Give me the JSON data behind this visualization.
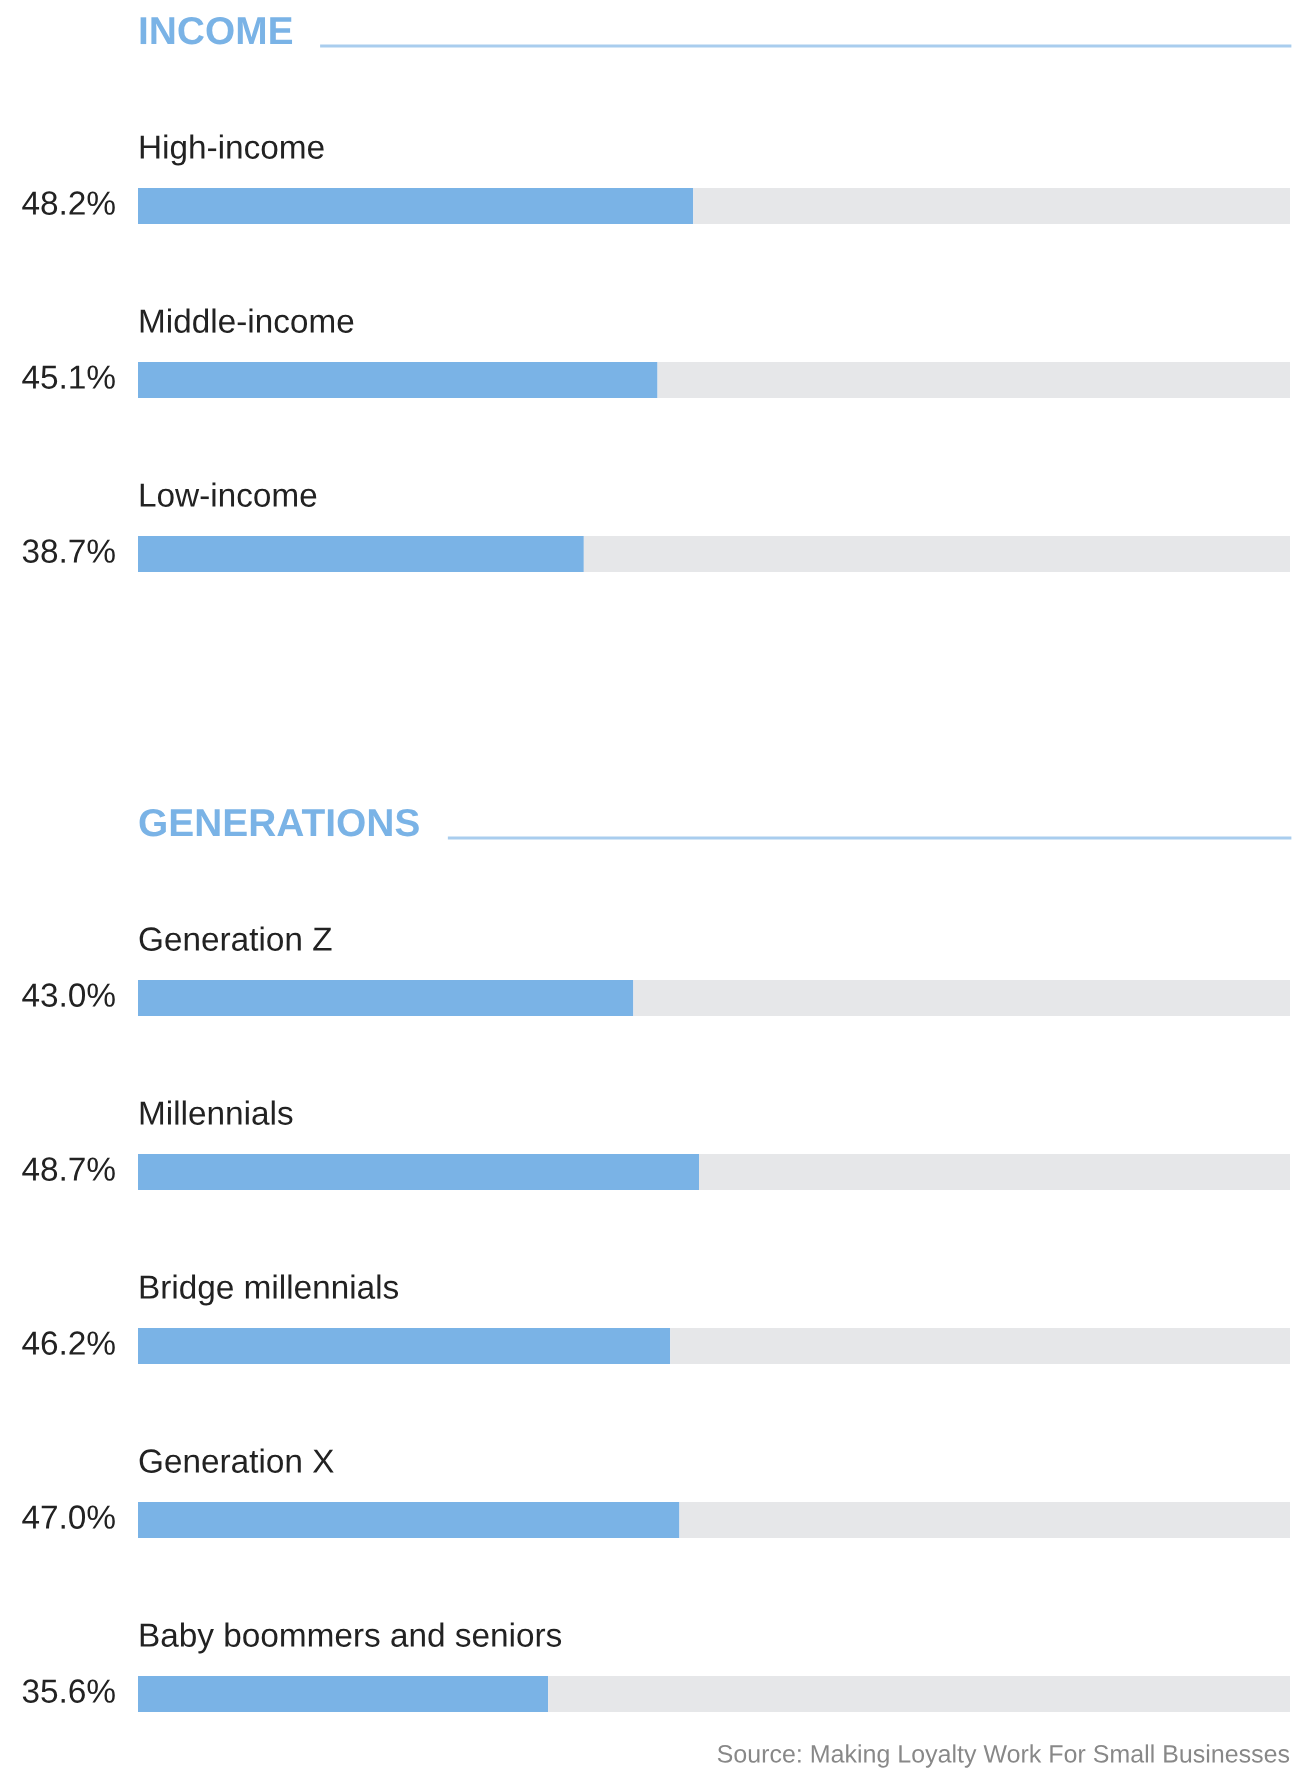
{
  "chart_data": [
    {
      "type": "bar",
      "orientation": "horizontal",
      "stacked": true,
      "title": "INCOME",
      "categories": [
        "High-income",
        "Middle-income",
        "Low-income"
      ],
      "xlim": [
        0,
        100
      ],
      "series": [
        {
          "color": "#7ab3e6",
          "values": [
            48.2,
            45.1,
            38.7
          ],
          "value_labels": [
            "48.2%",
            "45.1%",
            "38.7%"
          ]
        },
        {
          "color": "#e6e7e9",
          "values": [
            51.8,
            54.9,
            61.3
          ]
        }
      ]
    },
    {
      "type": "bar",
      "orientation": "horizontal",
      "stacked": true,
      "title": "GENERATIONS",
      "categories": [
        "Generation Z",
        "Millennials",
        "Bridge millennials",
        "Generation X",
        "Baby boommers and seniors"
      ],
      "xlim": [
        0,
        100
      ],
      "series": [
        {
          "color": "#7ab3e6",
          "values": [
            43.0,
            48.7,
            46.2,
            47.0,
            35.6
          ],
          "value_labels": [
            "43.0%",
            "48.7%",
            "46.2%",
            "47.0%",
            "35.6%"
          ]
        },
        {
          "color": "#e6e7e9",
          "values": [
            57.0,
            51.3,
            53.8,
            53.0,
            64.4
          ]
        }
      ],
      "annotations": [
        "Source: Making Loyalty Work For Small Businesses"
      ]
    }
  ]
}
